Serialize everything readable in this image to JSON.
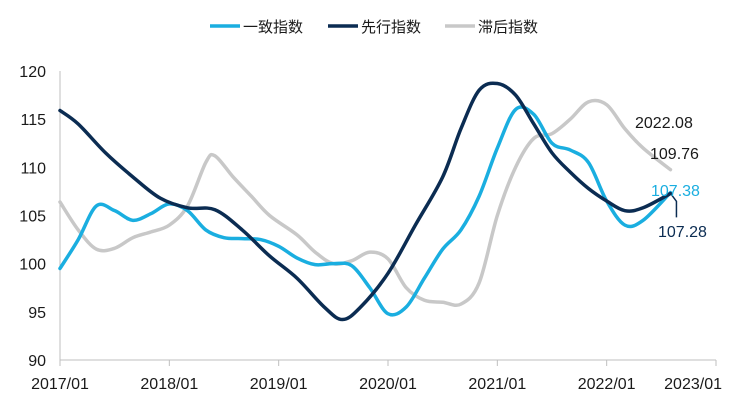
{
  "chart_data": {
    "type": "line",
    "title": "",
    "xlabel": "",
    "ylabel": "",
    "ylim": [
      90,
      120
    ],
    "yticks": [
      90,
      95,
      100,
      105,
      110,
      115,
      120
    ],
    "xlim": [
      "2017/01",
      "2023/01"
    ],
    "xticks": [
      "2017/01",
      "2018/01",
      "2019/01",
      "2020/01",
      "2021/01",
      "2022/01",
      "2023/01"
    ],
    "grid": false,
    "legend": "top-center",
    "series": [
      {
        "name": "一致指数",
        "color": "#1aaee0",
        "points": [
          [
            "2017/01",
            99.5
          ],
          [
            "2017/03",
            102.5
          ],
          [
            "2017/05",
            106.0
          ],
          [
            "2017/07",
            105.5
          ],
          [
            "2017/09",
            104.5
          ],
          [
            "2017/11",
            105.2
          ],
          [
            "2018/01",
            106.2
          ],
          [
            "2018/03",
            105.5
          ],
          [
            "2018/05",
            103.5
          ],
          [
            "2018/07",
            102.7
          ],
          [
            "2018/09",
            102.6
          ],
          [
            "2018/11",
            102.5
          ],
          [
            "2019/01",
            101.8
          ],
          [
            "2019/03",
            100.6
          ],
          [
            "2019/05",
            99.9
          ],
          [
            "2019/07",
            100.0
          ],
          [
            "2019/09",
            99.8
          ],
          [
            "2019/11",
            97.5
          ],
          [
            "2020/01",
            94.8
          ],
          [
            "2020/03",
            95.5
          ],
          [
            "2020/05",
            98.5
          ],
          [
            "2020/07",
            101.5
          ],
          [
            "2020/09",
            103.5
          ],
          [
            "2020/11",
            107.0
          ],
          [
            "2021/01",
            112.0
          ],
          [
            "2021/03",
            116.0
          ],
          [
            "2021/05",
            115.5
          ],
          [
            "2021/07",
            112.5
          ],
          [
            "2021/09",
            111.8
          ],
          [
            "2021/11",
            110.5
          ],
          [
            "2022/01",
            106.5
          ],
          [
            "2022/03",
            104.0
          ],
          [
            "2022/05",
            104.5
          ],
          [
            "2022/08",
            107.38
          ]
        ]
      },
      {
        "name": "先行指数",
        "color": "#0b2c52",
        "points": [
          [
            "2017/01",
            115.9
          ],
          [
            "2017/03",
            114.5
          ],
          [
            "2017/06",
            111.5
          ],
          [
            "2017/09",
            109.0
          ],
          [
            "2017/12",
            106.8
          ],
          [
            "2018/03",
            105.8
          ],
          [
            "2018/06",
            105.6
          ],
          [
            "2018/09",
            103.5
          ],
          [
            "2018/12",
            100.8
          ],
          [
            "2019/03",
            98.5
          ],
          [
            "2019/06",
            95.5
          ],
          [
            "2019/08",
            94.2
          ],
          [
            "2019/10",
            95.5
          ],
          [
            "2020/01",
            99.0
          ],
          [
            "2020/04",
            104.0
          ],
          [
            "2020/07",
            109.0
          ],
          [
            "2020/09",
            114.0
          ],
          [
            "2020/11",
            118.0
          ],
          [
            "2021/01",
            118.7
          ],
          [
            "2021/03",
            117.5
          ],
          [
            "2021/05",
            114.5
          ],
          [
            "2021/07",
            111.5
          ],
          [
            "2021/09",
            109.5
          ],
          [
            "2021/11",
            107.8
          ],
          [
            "2022/01",
            106.5
          ],
          [
            "2022/03",
            105.5
          ],
          [
            "2022/05",
            105.8
          ],
          [
            "2022/08",
            107.28
          ]
        ]
      },
      {
        "name": "滞后指数",
        "color": "#c8c8c8",
        "points": [
          [
            "2017/01",
            106.4
          ],
          [
            "2017/03",
            103.5
          ],
          [
            "2017/05",
            101.5
          ],
          [
            "2017/07",
            101.6
          ],
          [
            "2017/09",
            102.7
          ],
          [
            "2017/11",
            103.3
          ],
          [
            "2018/01",
            104.0
          ],
          [
            "2018/03",
            106.0
          ],
          [
            "2018/05",
            110.5
          ],
          [
            "2018/06",
            111.2
          ],
          [
            "2018/08",
            109.0
          ],
          [
            "2018/10",
            107.0
          ],
          [
            "2018/12",
            105.0
          ],
          [
            "2019/03",
            103.0
          ],
          [
            "2019/05",
            101.2
          ],
          [
            "2019/07",
            100.0
          ],
          [
            "2019/09",
            100.3
          ],
          [
            "2019/11",
            101.2
          ],
          [
            "2020/01",
            100.5
          ],
          [
            "2020/03",
            97.5
          ],
          [
            "2020/05",
            96.2
          ],
          [
            "2020/07",
            96.0
          ],
          [
            "2020/09",
            95.8
          ],
          [
            "2020/11",
            98.0
          ],
          [
            "2021/01",
            105.0
          ],
          [
            "2021/03",
            110.0
          ],
          [
            "2021/05",
            113.0
          ],
          [
            "2021/07",
            113.5
          ],
          [
            "2021/09",
            115.0
          ],
          [
            "2021/11",
            116.8
          ],
          [
            "2022/01",
            116.5
          ],
          [
            "2022/03",
            114.0
          ],
          [
            "2022/05",
            112.0
          ],
          [
            "2022/08",
            109.76
          ]
        ]
      }
    ],
    "annotations": [
      {
        "text": "2022.08",
        "color": "#1a1a1a"
      },
      {
        "text": "109.76",
        "color": "#1a1a1a"
      },
      {
        "text": "107.38",
        "color": "#1aaee0"
      },
      {
        "text": "107.28",
        "color": "#0b2c52"
      }
    ],
    "axis_color": "#bfbfbf"
  }
}
